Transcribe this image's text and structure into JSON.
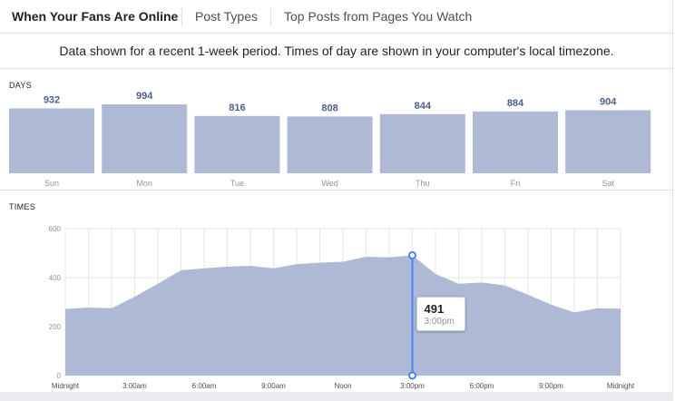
{
  "tabs": [
    {
      "label": "When Your Fans Are Online",
      "active": true
    },
    {
      "label": "Post Types",
      "active": false
    },
    {
      "label": "Top Posts from Pages You Watch",
      "active": false
    }
  ],
  "notice": "Data shown for a recent 1-week period. Times of day are shown in your computer's local timezone.",
  "days_label": "DAYS",
  "times_label": "TIMES",
  "tooltip": {
    "value": "491",
    "time": "3:00pm"
  },
  "colors": {
    "bar": "#aeb9d6",
    "value_text": "#4b5e8c",
    "line": "#4a80f5",
    "area": "#aeb9d6",
    "grid": "#e5e6e9"
  },
  "chart_data": [
    {
      "type": "bar",
      "categories": [
        "Sun",
        "Mon",
        "Tue",
        "Wed",
        "Thu",
        "Fri",
        "Sat"
      ],
      "values": [
        932,
        994,
        816,
        808,
        844,
        884,
        904
      ]
    },
    {
      "type": "area",
      "x": [
        0,
        1,
        2,
        3,
        4,
        5,
        6,
        7,
        8,
        9,
        10,
        11,
        12,
        13,
        14,
        15,
        16,
        17,
        18,
        19,
        20,
        21,
        22,
        23,
        24
      ],
      "values": [
        272,
        278,
        275,
        322,
        375,
        430,
        438,
        445,
        448,
        438,
        455,
        461,
        465,
        485,
        483,
        491,
        415,
        375,
        380,
        368,
        330,
        290,
        258,
        275,
        273
      ],
      "ylim": [
        0,
        600
      ],
      "yticks": [
        0,
        200,
        400,
        600
      ],
      "xtick_labels": [
        "Midnight",
        "3:00am",
        "6:00am",
        "9:00am",
        "Noon",
        "3:00pm",
        "6:00pm",
        "9:00pm",
        "Midnight"
      ],
      "highlight_index": 15
    }
  ]
}
